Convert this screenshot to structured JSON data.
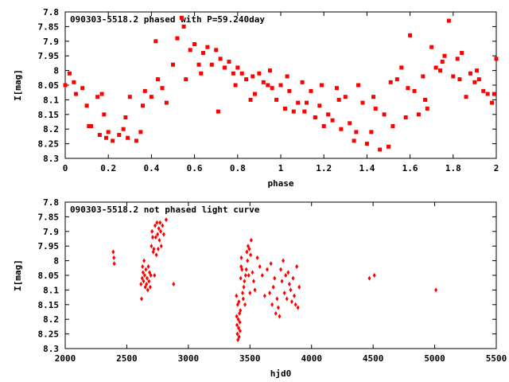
{
  "chart_data": [
    {
      "type": "scatter",
      "title": "090303-5518.2 phased with P=59.240day",
      "xlabel": "phase",
      "ylabel": "I[mag]",
      "xlim": [
        0,
        2
      ],
      "ylim": [
        8.3,
        7.8
      ],
      "y_inverted": true,
      "x_ticks": [
        "0",
        "0.2",
        "0.4",
        "0.6",
        "0.8",
        "1",
        "1.2",
        "1.4",
        "1.6",
        "1.8",
        "2"
      ],
      "y_ticks": [
        "7.8",
        "7.85",
        "7.9",
        "7.95",
        "8",
        "8.05",
        "8.1",
        "8.15",
        "8.2",
        "8.25",
        "8.3"
      ],
      "marker_color": "#ff0000",
      "marker": "square",
      "series": [
        {
          "x": [
            0.0,
            0.02,
            0.05,
            0.08,
            0.1,
            0.12,
            0.15,
            0.16,
            0.17,
            0.18,
            0.2,
            0.22,
            0.25,
            0.28,
            0.29,
            0.3,
            0.33,
            0.35,
            0.36,
            0.4,
            0.42,
            0.45,
            0.47,
            0.5,
            0.52,
            0.54,
            0.56,
            0.58,
            0.6,
            0.62,
            0.64,
            0.66,
            0.68,
            0.7,
            0.72,
            0.74,
            0.76,
            0.78,
            0.8,
            0.82,
            0.84,
            0.86,
            0.88,
            0.9,
            0.92,
            0.94,
            0.96,
            0.98,
            1.0,
            1.02,
            1.04,
            1.06,
            1.08,
            1.1,
            1.12,
            1.14,
            1.16,
            1.18,
            1.2,
            1.22,
            1.24,
            1.26,
            1.28,
            1.3,
            1.32,
            1.34,
            1.36,
            1.38,
            1.4,
            1.42,
            1.44,
            1.46,
            1.48,
            1.5,
            1.52,
            1.54,
            1.56,
            1.58,
            1.6,
            1.62,
            1.64,
            1.66,
            1.68,
            1.7,
            1.72,
            1.74,
            1.76,
            1.78,
            1.8,
            1.82,
            1.84,
            1.86,
            1.88,
            1.9,
            1.92,
            1.94,
            1.96,
            1.98,
            2.0,
            0.04,
            0.11,
            0.19,
            0.27,
            0.37,
            0.43,
            0.55,
            0.63,
            0.71,
            0.79,
            0.87,
            0.95,
            1.03,
            1.11,
            1.19,
            1.27,
            1.35,
            1.43,
            1.51,
            1.59,
            1.67,
            1.75,
            1.83,
            1.91,
            1.99
          ],
          "y": [
            8.05,
            8.01,
            8.08,
            8.06,
            8.12,
            8.19,
            8.09,
            8.22,
            8.08,
            8.15,
            8.21,
            8.24,
            8.22,
            8.16,
            8.23,
            8.09,
            8.24,
            8.21,
            8.12,
            8.09,
            7.9,
            8.06,
            8.11,
            7.98,
            7.89,
            7.82,
            8.03,
            7.93,
            7.91,
            7.98,
            7.94,
            7.92,
            7.98,
            7.93,
            7.96,
            7.99,
            7.97,
            8.01,
            7.99,
            8.01,
            8.03,
            8.1,
            8.08,
            8.01,
            8.04,
            8.05,
            8.06,
            8.1,
            8.05,
            8.13,
            8.07,
            8.14,
            8.11,
            8.04,
            8.11,
            8.07,
            8.16,
            8.12,
            8.19,
            8.15,
            8.17,
            8.06,
            8.2,
            8.09,
            8.18,
            8.24,
            8.05,
            8.11,
            8.25,
            8.21,
            8.13,
            8.27,
            8.15,
            8.26,
            8.19,
            8.03,
            7.99,
            8.16,
            7.88,
            8.07,
            8.15,
            8.02,
            8.13,
            7.92,
            7.99,
            8.0,
            7.95,
            7.83,
            8.02,
            7.96,
            7.94,
            8.09,
            8.01,
            8.04,
            8.03,
            8.07,
            8.08,
            8.11,
            7.96,
            8.04,
            8.19,
            8.23,
            8.2,
            8.07,
            8.03,
            7.85,
            8.01,
            8.14,
            8.05,
            8.02,
            8.0,
            8.02,
            8.14,
            8.05,
            8.1,
            8.21,
            8.09,
            8.04,
            8.06,
            8.1,
            7.97,
            8.03,
            8.0,
            8.08
          ]
        }
      ]
    },
    {
      "type": "scatter",
      "title": "090303-5518.2 not phased light curve",
      "xlabel": "hjd0",
      "ylabel": "I[mag]",
      "xlim": [
        2000,
        5500
      ],
      "ylim": [
        8.3,
        7.8
      ],
      "y_inverted": true,
      "x_ticks": [
        "2000",
        "2500",
        "3000",
        "3500",
        "4000",
        "4500",
        "5000",
        "5500"
      ],
      "y_ticks": [
        "7.8",
        "7.85",
        "7.9",
        "7.95",
        "8",
        "8.05",
        "8.1",
        "8.15",
        "8.2",
        "8.25",
        "8.3"
      ],
      "marker_color": "#ff0000",
      "marker": "diamond",
      "series": [
        {
          "x": [
            2390,
            2395,
            2398,
            2615,
            2620,
            2625,
            2628,
            2632,
            2636,
            2640,
            2645,
            2650,
            2655,
            2660,
            2665,
            2670,
            2675,
            2680,
            2685,
            2690,
            2695,
            2700,
            2705,
            2710,
            2715,
            2720,
            2725,
            2730,
            2735,
            2740,
            2745,
            2750,
            2755,
            2760,
            2765,
            2770,
            2775,
            2780,
            2790,
            2800,
            2820,
            2880,
            3390,
            3392,
            3395,
            3398,
            3400,
            3402,
            3405,
            3408,
            3410,
            3412,
            3415,
            3418,
            3420,
            3422,
            3425,
            3428,
            3430,
            3435,
            3440,
            3445,
            3450,
            3455,
            3460,
            3465,
            3470,
            3475,
            3480,
            3485,
            3490,
            3495,
            3500,
            3505,
            3510,
            3520,
            3530,
            3540,
            3560,
            3580,
            3600,
            3620,
            3640,
            3660,
            3670,
            3680,
            3690,
            3700,
            3710,
            3720,
            3730,
            3740,
            3750,
            3760,
            3770,
            3780,
            3790,
            3800,
            3810,
            3820,
            3830,
            3840,
            3850,
            3860,
            3870,
            3880,
            3890,
            3900,
            4470,
            4510,
            5010
          ],
          "y": [
            7.97,
            7.99,
            8.01,
            8.08,
            8.13,
            8.06,
            8.02,
            8.04,
            8.07,
            8.0,
            8.05,
            8.09,
            8.03,
            8.08,
            8.06,
            8.1,
            8.02,
            8.07,
            8.04,
            8.09,
            8.05,
            7.95,
            7.9,
            7.92,
            7.97,
            7.96,
            8.05,
            7.88,
            7.92,
            7.98,
            7.87,
            7.91,
            7.96,
            7.89,
            7.93,
            7.87,
            7.9,
            7.95,
            7.88,
            7.91,
            7.86,
            8.08,
            8.12,
            8.19,
            8.22,
            8.25,
            8.15,
            8.27,
            8.2,
            8.23,
            8.14,
            8.26,
            8.18,
            8.21,
            8.24,
            8.17,
            8.06,
            8.02,
            7.99,
            8.03,
            8.11,
            8.13,
            8.09,
            8.07,
            8.15,
            8.05,
            8.03,
            7.97,
            8.0,
            7.95,
            8.05,
            7.96,
            8.11,
            7.98,
            7.93,
            8.04,
            8.07,
            8.1,
            7.99,
            8.02,
            8.05,
            8.12,
            8.03,
            8.11,
            8.01,
            8.15,
            8.09,
            8.06,
            8.18,
            8.13,
            8.16,
            8.19,
            8.03,
            8.07,
            8.0,
            8.11,
            8.05,
            8.13,
            8.04,
            8.08,
            8.1,
            8.14,
            8.06,
            8.12,
            8.15,
            8.02,
            8.16,
            8.09,
            8.06,
            8.05,
            8.1
          ]
        }
      ]
    }
  ]
}
